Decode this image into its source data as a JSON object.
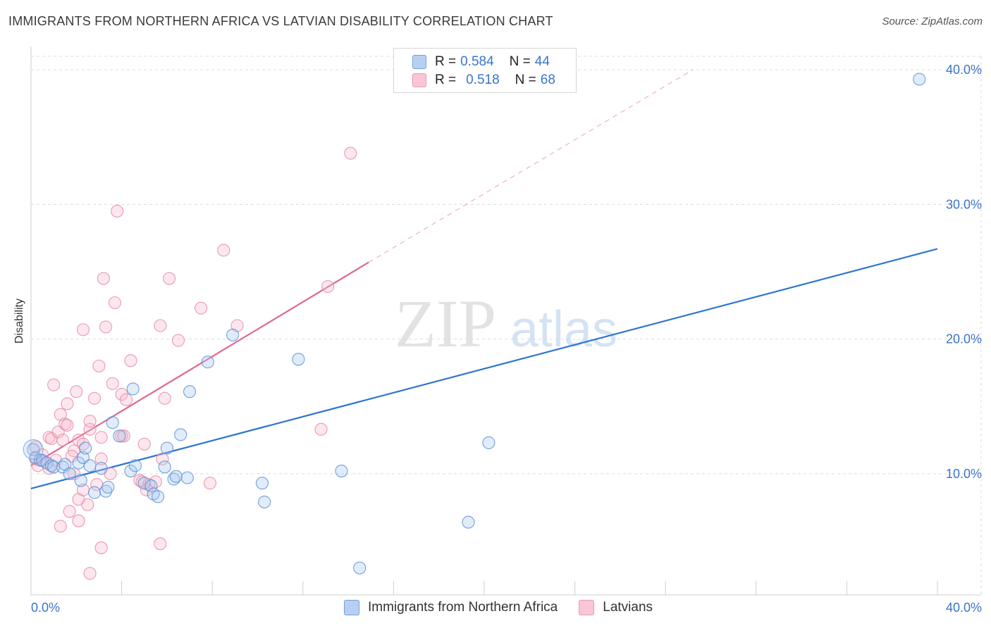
{
  "title": "IMMIGRANTS FROM NORTHERN AFRICA VS LATVIAN DISABILITY CORRELATION CHART",
  "source": "Source: ZipAtlas.com",
  "watermark": {
    "zip": "ZIP",
    "atlas": "atlas"
  },
  "legend": {
    "rows": [
      {
        "r_label": "R =",
        "r_value": "0.584",
        "n_label": "N =",
        "n_value": "44"
      },
      {
        "r_label": "R =",
        "r_value": "0.518",
        "n_label": "N =",
        "n_value": "68"
      }
    ]
  },
  "bottom_legend": {
    "series1": "Immigrants from Northern Africa",
    "series2": "Latvians"
  },
  "colors": {
    "blue_fill": "#a9c8f0",
    "blue_stroke": "#5b8fd6",
    "blue_line": "#2f74d0",
    "pink_fill": "#f6b9cc",
    "pink_stroke": "#e58aa8",
    "pink_line": "#e0668f",
    "tick_text": "#3a74c9",
    "grid": "#dcdcdc"
  },
  "chart_data": {
    "type": "scatter",
    "title": "IMMIGRANTS FROM NORTHERN AFRICA VS LATVIAN DISABILITY CORRELATION CHART",
    "xlabel": "",
    "ylabel": "Disability",
    "xlim": [
      0,
      40
    ],
    "ylim": [
      1,
      41
    ],
    "x_tick_labels": [
      "0.0%",
      "40.0%"
    ],
    "y_ticks": [
      10,
      20,
      30,
      40
    ],
    "y_tick_labels": [
      "10.0%",
      "20.0%",
      "30.0%",
      "40.0%"
    ],
    "series": [
      {
        "name": "Immigrants from Northern Africa",
        "color": "blue",
        "trend": {
          "x": [
            0,
            40
          ],
          "y": [
            8.9,
            26.7
          ]
        },
        "points": [
          [
            0.1,
            11.8
          ],
          [
            0.2,
            11.2
          ],
          [
            0.4,
            11.0
          ],
          [
            0.5,
            11.0
          ],
          [
            0.7,
            10.8
          ],
          [
            0.9,
            10.6
          ],
          [
            1.0,
            10.5
          ],
          [
            1.4,
            10.5
          ],
          [
            1.5,
            10.7
          ],
          [
            1.7,
            10.0
          ],
          [
            2.1,
            10.8
          ],
          [
            2.2,
            9.5
          ],
          [
            2.3,
            11.2
          ],
          [
            2.4,
            11.9
          ],
          [
            2.6,
            10.6
          ],
          [
            2.8,
            8.6
          ],
          [
            3.1,
            10.4
          ],
          [
            3.3,
            8.7
          ],
          [
            3.4,
            9.0
          ],
          [
            3.6,
            13.8
          ],
          [
            3.9,
            12.8
          ],
          [
            4.4,
            10.2
          ],
          [
            4.5,
            16.3
          ],
          [
            4.6,
            10.6
          ],
          [
            5.0,
            9.3
          ],
          [
            5.3,
            9.1
          ],
          [
            5.4,
            8.5
          ],
          [
            5.6,
            8.3
          ],
          [
            5.9,
            10.5
          ],
          [
            6.0,
            11.9
          ],
          [
            6.3,
            9.6
          ],
          [
            6.4,
            9.8
          ],
          [
            6.6,
            12.9
          ],
          [
            6.9,
            9.7
          ],
          [
            7.0,
            16.1
          ],
          [
            7.8,
            18.3
          ],
          [
            8.9,
            20.3
          ],
          [
            10.2,
            9.3
          ],
          [
            10.3,
            7.9
          ],
          [
            11.8,
            18.5
          ],
          [
            13.7,
            10.2
          ],
          [
            14.5,
            3.0
          ],
          [
            19.3,
            6.4
          ],
          [
            20.2,
            12.3
          ],
          [
            39.2,
            39.3
          ]
        ]
      },
      {
        "name": "Latvians",
        "color": "pink",
        "trend": {
          "x": [
            0,
            14.9
          ],
          "y": [
            10.6,
            25.7
          ]
        },
        "trend_dashed": {
          "x": [
            14.9,
            29.2
          ],
          "y": [
            25.7,
            40.0
          ]
        },
        "points": [
          [
            0.2,
            12.0
          ],
          [
            0.3,
            10.6
          ],
          [
            0.5,
            11.4
          ],
          [
            0.6,
            10.9
          ],
          [
            0.8,
            10.4
          ],
          [
            0.8,
            12.7
          ],
          [
            0.9,
            12.6
          ],
          [
            1.0,
            16.6
          ],
          [
            1.1,
            11.0
          ],
          [
            1.2,
            13.1
          ],
          [
            1.3,
            14.4
          ],
          [
            1.3,
            6.1
          ],
          [
            1.4,
            12.5
          ],
          [
            1.5,
            13.7
          ],
          [
            1.6,
            15.2
          ],
          [
            1.6,
            13.6
          ],
          [
            1.7,
            7.2
          ],
          [
            1.9,
            11.7
          ],
          [
            1.9,
            10.0
          ],
          [
            2.0,
            16.1
          ],
          [
            2.1,
            12.5
          ],
          [
            2.1,
            8.1
          ],
          [
            2.1,
            6.5
          ],
          [
            2.3,
            12.2
          ],
          [
            2.3,
            8.8
          ],
          [
            2.3,
            20.7
          ],
          [
            2.5,
            7.7
          ],
          [
            2.6,
            13.3
          ],
          [
            2.6,
            13.9
          ],
          [
            2.6,
            2.6
          ],
          [
            2.8,
            15.6
          ],
          [
            2.9,
            9.2
          ],
          [
            3.0,
            18.0
          ],
          [
            3.1,
            12.7
          ],
          [
            3.1,
            4.5
          ],
          [
            3.1,
            11.1
          ],
          [
            3.2,
            24.5
          ],
          [
            3.3,
            20.9
          ],
          [
            3.5,
            10.0
          ],
          [
            3.6,
            16.7
          ],
          [
            3.7,
            22.7
          ],
          [
            3.8,
            29.5
          ],
          [
            4.0,
            12.8
          ],
          [
            4.0,
            15.9
          ],
          [
            4.1,
            12.8
          ],
          [
            4.2,
            15.5
          ],
          [
            4.4,
            18.4
          ],
          [
            4.8,
            9.5
          ],
          [
            4.9,
            9.4
          ],
          [
            5.0,
            12.2
          ],
          [
            5.1,
            8.8
          ],
          [
            5.2,
            9.2
          ],
          [
            5.5,
            9.4
          ],
          [
            5.7,
            4.8
          ],
          [
            5.7,
            21.0
          ],
          [
            5.8,
            11.1
          ],
          [
            5.9,
            15.6
          ],
          [
            6.1,
            24.5
          ],
          [
            6.5,
            19.9
          ],
          [
            7.5,
            22.3
          ],
          [
            7.9,
            9.3
          ],
          [
            8.5,
            26.6
          ],
          [
            9.1,
            21.0
          ],
          [
            12.8,
            13.3
          ],
          [
            13.1,
            23.9
          ],
          [
            14.1,
            33.8
          ],
          [
            0.2,
            11.1
          ],
          [
            1.8,
            11.3
          ]
        ]
      }
    ]
  }
}
